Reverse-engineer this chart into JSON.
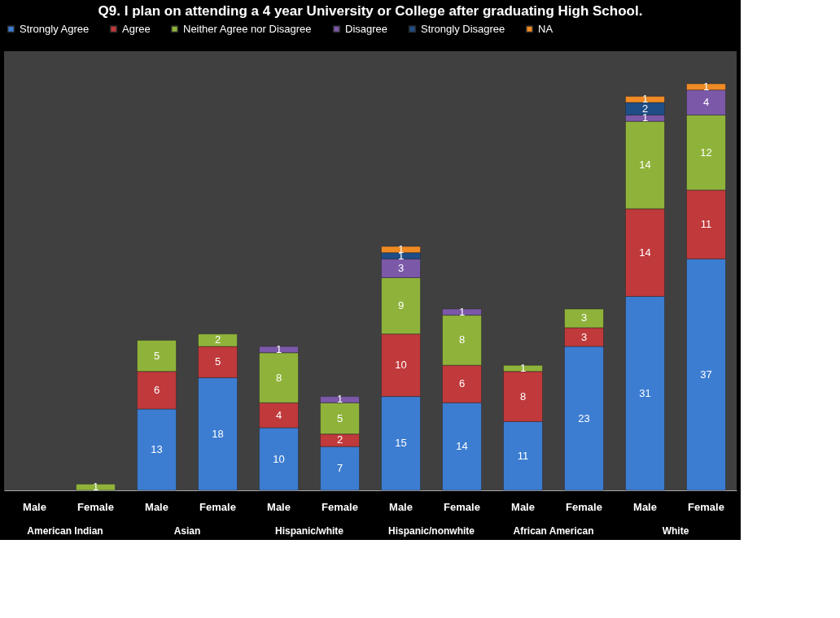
{
  "chart_data": {
    "type": "bar",
    "title": "Q9. I plan on attending a 4 year University or College after graduating High School.",
    "categories": [
      "Male",
      "Female",
      "Male",
      "Female",
      "Male",
      "Female",
      "Male",
      "Female",
      "Male",
      "Female",
      "Male",
      "Female"
    ],
    "annotations": [
      "American Indian",
      "Asian",
      "Hispanic/white",
      "Hispanic/nonwhite",
      "African American",
      "White"
    ],
    "stacked": true,
    "data_labels": true,
    "legend": "top",
    "series": [
      {
        "name": "Strongly Agree",
        "color": "#3c7dd1",
        "values": [
          null,
          null,
          13,
          18,
          10,
          7,
          15,
          14,
          11,
          23,
          31,
          37
        ]
      },
      {
        "name": "Agree",
        "color": "#c0393b",
        "values": [
          null,
          null,
          6,
          5,
          4,
          2,
          10,
          6,
          8,
          3,
          14,
          11
        ]
      },
      {
        "name": "Neither Agree nor Disagree",
        "color": "#8fb33a",
        "values": [
          null,
          1,
          5,
          2,
          8,
          5,
          9,
          8,
          1,
          3,
          14,
          12
        ]
      },
      {
        "name": "Disagree",
        "color": "#7b58a8",
        "values": [
          null,
          null,
          null,
          null,
          1,
          1,
          3,
          1,
          null,
          null,
          1,
          4
        ]
      },
      {
        "name": "Strongly Disagree",
        "color": "#1f4e86",
        "values": [
          null,
          null,
          null,
          null,
          null,
          null,
          1,
          null,
          null,
          null,
          2,
          null
        ]
      },
      {
        "name": "NA",
        "color": "#f08a24",
        "values": [
          null,
          null,
          null,
          null,
          null,
          null,
          1,
          null,
          null,
          null,
          1,
          1
        ]
      }
    ]
  }
}
